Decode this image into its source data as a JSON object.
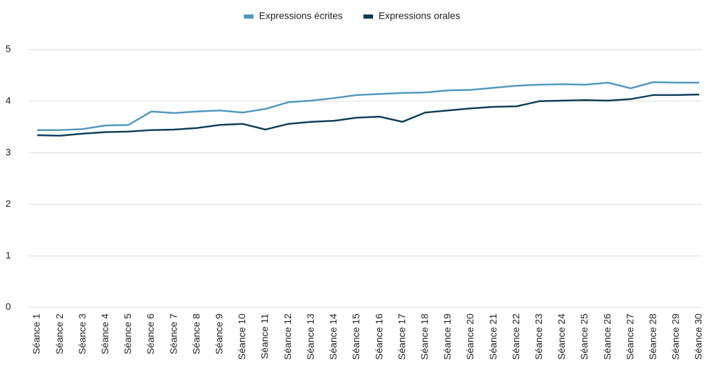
{
  "chart_data": {
    "type": "line",
    "categories": [
      "Séance 1",
      "Séance 2",
      "Séance 3",
      "Séance 4",
      "Séance 5",
      "Séance 6",
      "Séance 7",
      "Séance 8",
      "Séance 9",
      "Séance 10",
      "Séance 11",
      "Séance 12",
      "Séance 13",
      "Séance 14",
      "Séance 15",
      "Séance 16",
      "Séance 17",
      "Séance 18",
      "Séance 19",
      "Séance 20",
      "Séance 21",
      "Séance 22",
      "Séance 23",
      "Séance 24",
      "Séance 25",
      "Séance 26",
      "Séance 27",
      "Séance 28",
      "Séance 29",
      "Séance 30"
    ],
    "series": [
      {
        "name": "Expressions écrites",
        "color": "#4f97bd",
        "values": [
          3.44,
          3.44,
          3.46,
          3.53,
          3.54,
          3.8,
          3.77,
          3.8,
          3.82,
          3.78,
          3.85,
          3.98,
          4.01,
          4.06,
          4.12,
          4.14,
          4.16,
          4.17,
          4.21,
          4.22,
          4.26,
          4.3,
          4.32,
          4.33,
          4.32,
          4.36,
          4.25,
          4.37,
          4.36,
          4.36
        ]
      },
      {
        "name": "Expressions orales",
        "color": "#0d3d5a",
        "values": [
          3.34,
          3.33,
          3.37,
          3.4,
          3.41,
          3.44,
          3.45,
          3.48,
          3.54,
          3.56,
          3.45,
          3.56,
          3.6,
          3.62,
          3.68,
          3.7,
          3.6,
          3.78,
          3.82,
          3.86,
          3.89,
          3.9,
          4.0,
          4.01,
          4.02,
          4.01,
          4.04,
          4.12,
          4.12,
          4.13
        ]
      }
    ],
    "ylim": [
      0,
      5
    ],
    "yticks": [
      0,
      1,
      2,
      3,
      4,
      5
    ],
    "grid": true,
    "legend": "top"
  }
}
